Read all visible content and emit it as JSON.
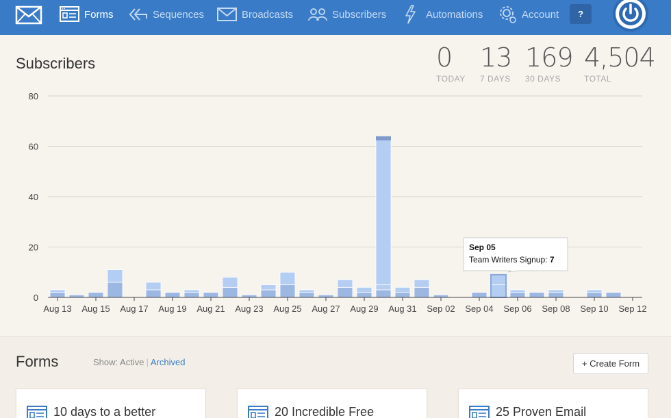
{
  "nav": {
    "items": [
      {
        "label": "Forms",
        "icon": "form-icon",
        "active": true
      },
      {
        "label": "Sequences",
        "icon": "sequences-icon",
        "active": false
      },
      {
        "label": "Broadcasts",
        "icon": "envelope-icon",
        "active": false
      },
      {
        "label": "Subscribers",
        "icon": "people-icon",
        "active": false
      },
      {
        "label": "Automations",
        "icon": "lightning-icon",
        "active": false
      },
      {
        "label": "Account",
        "icon": "gear-icon",
        "active": false
      }
    ],
    "help_label": "?"
  },
  "subscribers": {
    "title": "Subscribers",
    "stats": [
      {
        "value": "0",
        "label": "TODAY"
      },
      {
        "value": "13",
        "label": "7 DAYS"
      },
      {
        "value": "169",
        "label": "30 DAYS"
      },
      {
        "value": "4,504",
        "label": "TOTAL"
      }
    ]
  },
  "chart_data": {
    "type": "bar",
    "stacked": true,
    "ylim": [
      0,
      80
    ],
    "yticks": [
      0,
      20,
      40,
      60,
      80
    ],
    "xtick_labels": [
      "Aug 13",
      "Aug 15",
      "Aug 17",
      "Aug 19",
      "Aug 21",
      "Aug 23",
      "Aug 25",
      "Aug 27",
      "Aug 29",
      "Aug 31",
      "Sep 02",
      "Sep 04",
      "Sep 06",
      "Sep 08",
      "Sep 10",
      "Sep 12"
    ],
    "categories": [
      "Aug 13",
      "Aug 14",
      "Aug 15",
      "Aug 16",
      "Aug 17",
      "Aug 18",
      "Aug 19",
      "Aug 20",
      "Aug 21",
      "Aug 22",
      "Aug 23",
      "Aug 24",
      "Aug 25",
      "Aug 26",
      "Aug 27",
      "Aug 28",
      "Aug 29",
      "Aug 30",
      "Aug 31",
      "Sep 01",
      "Sep 02",
      "Sep 03",
      "Sep 04",
      "Sep 05",
      "Sep 06",
      "Sep 07",
      "Sep 08",
      "Sep 09",
      "Sep 10",
      "Sep 11"
    ],
    "totals": [
      3,
      1,
      2,
      11,
      0,
      6,
      2,
      3,
      2,
      8,
      1,
      5,
      10,
      3,
      1,
      7,
      4,
      64,
      4,
      7,
      1,
      0,
      2,
      9,
      3,
      2,
      3,
      0,
      3,
      2
    ],
    "grid": true,
    "tooltip": {
      "date": "Sep 05",
      "series": "Team Writers Signup",
      "value": "7"
    },
    "colors": {
      "light": "#b3cdf3",
      "mid": "#9db7e3",
      "dark": "#7f9bcc",
      "axis": "#444444",
      "grid": "#d9d4cb"
    }
  },
  "forms": {
    "title": "Forms",
    "show_label": "Show:",
    "active_label": "Active",
    "separator": "|",
    "archived_label": "Archived",
    "create_label": "+ Create Form",
    "cards": [
      {
        "title": "10 days to a better"
      },
      {
        "title": "20 Incredible Free"
      },
      {
        "title": "25 Proven Email"
      }
    ]
  }
}
